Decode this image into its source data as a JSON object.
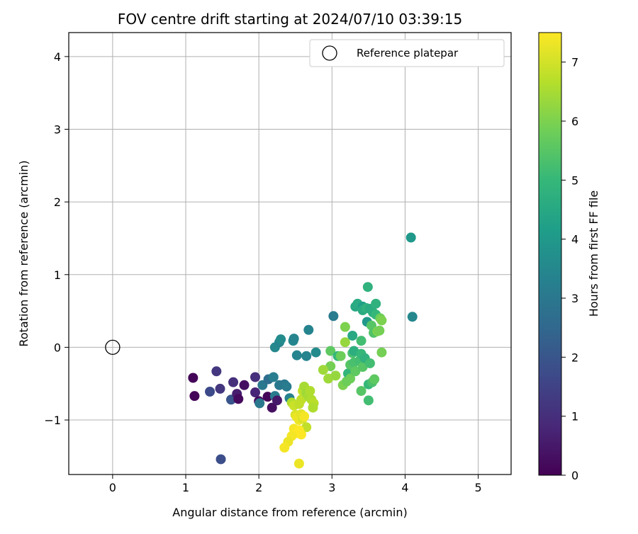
{
  "chart_data": {
    "type": "scatter",
    "title": "FOV centre drift starting at 2024/07/10 03:39:15",
    "xlabel": "Angular distance from reference (arcmin)",
    "ylabel": "Rotation from reference (arcmin)",
    "xlim": [
      -0.6,
      5.45
    ],
    "ylim": [
      -1.75,
      4.33
    ],
    "xticks": [
      0,
      1,
      2,
      3,
      4,
      5
    ],
    "xtick_labels": [
      "0",
      "1",
      "2",
      "3",
      "4",
      "5"
    ],
    "yticks": [
      -1,
      0,
      1,
      2,
      3,
      4
    ],
    "ytick_labels": [
      "−1",
      "0",
      "1",
      "2",
      "3",
      "4"
    ],
    "grid": true,
    "legend": {
      "placement": "top-right",
      "entries": [
        "Reference platepar"
      ]
    },
    "reference_point": {
      "x": 0,
      "y": 0
    },
    "colorbar": {
      "label": "Hours from first FF file",
      "colormap": "viridis",
      "range": [
        0,
        7.5
      ],
      "ticks": [
        0,
        1,
        2,
        3,
        4,
        5,
        6,
        7
      ],
      "tick_labels": [
        "0",
        "1",
        "2",
        "3",
        "4",
        "5",
        "6",
        "7"
      ]
    },
    "colors": {
      "viridis": [
        "#440154",
        "#482878",
        "#3e4989",
        "#31688e",
        "#26828e",
        "#1f9e89",
        "#35b779",
        "#6ece58",
        "#b5de2b",
        "#fde725"
      ]
    },
    "points": [
      {
        "x": 1.1,
        "y": -0.42,
        "c": 0.1
      },
      {
        "x": 1.12,
        "y": -0.67,
        "c": 0.1
      },
      {
        "x": 1.42,
        "y": -0.33,
        "c": 1.2
      },
      {
        "x": 1.33,
        "y": -0.61,
        "c": 1.7
      },
      {
        "x": 1.47,
        "y": -0.57,
        "c": 1.2
      },
      {
        "x": 1.62,
        "y": -0.72,
        "c": 2.0
      },
      {
        "x": 1.65,
        "y": -0.48,
        "c": 1.0
      },
      {
        "x": 1.7,
        "y": -0.64,
        "c": 0.6
      },
      {
        "x": 1.72,
        "y": -0.71,
        "c": 0.2
      },
      {
        "x": 1.8,
        "y": -0.52,
        "c": 0.3
      },
      {
        "x": 1.95,
        "y": -0.41,
        "c": 1.0
      },
      {
        "x": 1.95,
        "y": -0.62,
        "c": 0.8
      },
      {
        "x": 2.0,
        "y": -0.74,
        "c": 0.2
      },
      {
        "x": 2.05,
        "y": -0.52,
        "c": 3.0
      },
      {
        "x": 2.12,
        "y": -0.68,
        "c": 0.1
      },
      {
        "x": 2.13,
        "y": -0.44,
        "c": 2.7
      },
      {
        "x": 2.2,
        "y": -0.41,
        "c": 3.2
      },
      {
        "x": 2.18,
        "y": -0.83,
        "c": 0.3
      },
      {
        "x": 2.22,
        "y": -0.67,
        "c": 3.1
      },
      {
        "x": 2.25,
        "y": -0.73,
        "c": 0.5
      },
      {
        "x": 2.28,
        "y": -0.52,
        "c": 3.0
      },
      {
        "x": 2.35,
        "y": -0.51,
        "c": 3.0
      },
      {
        "x": 2.38,
        "y": -0.54,
        "c": 3.1
      },
      {
        "x": 2.01,
        "y": -0.77,
        "c": 3.0
      },
      {
        "x": 2.42,
        "y": -0.7,
        "c": 3.3
      },
      {
        "x": 1.48,
        "y": -1.54,
        "c": 1.8
      },
      {
        "x": 2.22,
        "y": 0.0,
        "c": 3.5
      },
      {
        "x": 2.28,
        "y": 0.07,
        "c": 3.4
      },
      {
        "x": 2.3,
        "y": 0.11,
        "c": 3.6
      },
      {
        "x": 2.47,
        "y": 0.09,
        "c": 3.5
      },
      {
        "x": 2.48,
        "y": 0.12,
        "c": 3.4
      },
      {
        "x": 2.52,
        "y": -0.11,
        "c": 3.4
      },
      {
        "x": 2.65,
        "y": -0.12,
        "c": 3.4
      },
      {
        "x": 2.68,
        "y": 0.24,
        "c": 3.4
      },
      {
        "x": 2.78,
        "y": -0.07,
        "c": 3.6
      },
      {
        "x": 3.02,
        "y": 0.43,
        "c": 3.1
      },
      {
        "x": 2.98,
        "y": -0.05,
        "c": 5.6
      },
      {
        "x": 2.98,
        "y": -0.26,
        "c": 5.9
      },
      {
        "x": 2.95,
        "y": -0.43,
        "c": 6.4
      },
      {
        "x": 2.88,
        "y": -0.31,
        "c": 6.4
      },
      {
        "x": 3.05,
        "y": -0.39,
        "c": 6.3
      },
      {
        "x": 3.08,
        "y": -0.12,
        "c": 5.0
      },
      {
        "x": 3.12,
        "y": -0.12,
        "c": 5.8
      },
      {
        "x": 3.15,
        "y": -0.52,
        "c": 6.0
      },
      {
        "x": 3.18,
        "y": 0.28,
        "c": 6.0
      },
      {
        "x": 3.2,
        "y": -0.47,
        "c": 5.8
      },
      {
        "x": 3.18,
        "y": 0.07,
        "c": 6.3
      },
      {
        "x": 3.22,
        "y": -0.36,
        "c": 4.9
      },
      {
        "x": 3.25,
        "y": -0.24,
        "c": 5.5
      },
      {
        "x": 3.25,
        "y": -0.43,
        "c": 5.8
      },
      {
        "x": 3.28,
        "y": 0.16,
        "c": 4.5
      },
      {
        "x": 3.28,
        "y": -0.08,
        "c": 5.3
      },
      {
        "x": 3.3,
        "y": -0.21,
        "c": 5.3
      },
      {
        "x": 3.32,
        "y": -0.33,
        "c": 5.6
      },
      {
        "x": 3.3,
        "y": -0.05,
        "c": 4.7
      },
      {
        "x": 3.32,
        "y": 0.56,
        "c": 4.5
      },
      {
        "x": 3.35,
        "y": 0.6,
        "c": 4.6
      },
      {
        "x": 3.38,
        "y": -0.18,
        "c": 5.2
      },
      {
        "x": 3.4,
        "y": 0.09,
        "c": 5.2
      },
      {
        "x": 3.4,
        "y": -0.09,
        "c": 5.0
      },
      {
        "x": 3.42,
        "y": -0.27,
        "c": 5.5
      },
      {
        "x": 3.42,
        "y": 0.56,
        "c": 4.2
      },
      {
        "x": 3.42,
        "y": 0.51,
        "c": 4.6
      },
      {
        "x": 3.4,
        "y": -0.6,
        "c": 5.5
      },
      {
        "x": 3.45,
        "y": -0.15,
        "c": 4.8
      },
      {
        "x": 3.47,
        "y": 0.54,
        "c": 4.8
      },
      {
        "x": 3.48,
        "y": 0.35,
        "c": 4.0
      },
      {
        "x": 3.49,
        "y": 0.83,
        "c": 4.8
      },
      {
        "x": 3.5,
        "y": -0.51,
        "c": 5.0
      },
      {
        "x": 3.5,
        "y": -0.73,
        "c": 5.2
      },
      {
        "x": 3.52,
        "y": -0.22,
        "c": 5.2
      },
      {
        "x": 3.52,
        "y": 0.53,
        "c": 4.6
      },
      {
        "x": 3.54,
        "y": 0.3,
        "c": 5.5
      },
      {
        "x": 3.55,
        "y": -0.48,
        "c": 5.3
      },
      {
        "x": 3.56,
        "y": 0.48,
        "c": 4.7
      },
      {
        "x": 3.57,
        "y": 0.2,
        "c": 5.4
      },
      {
        "x": 3.58,
        "y": -0.44,
        "c": 5.6
      },
      {
        "x": 3.6,
        "y": 0.6,
        "c": 4.8
      },
      {
        "x": 3.6,
        "y": 0.45,
        "c": 5.0
      },
      {
        "x": 3.62,
        "y": 0.22,
        "c": 6.0
      },
      {
        "x": 3.65,
        "y": 0.23,
        "c": 5.9
      },
      {
        "x": 3.66,
        "y": 0.4,
        "c": 5.8
      },
      {
        "x": 3.68,
        "y": 0.37,
        "c": 6.0
      },
      {
        "x": 3.68,
        "y": -0.07,
        "c": 5.9
      },
      {
        "x": 4.08,
        "y": 1.51,
        "c": 4.0
      },
      {
        "x": 4.1,
        "y": 0.42,
        "c": 3.5
      },
      {
        "x": 2.45,
        "y": -0.76,
        "c": 6.6
      },
      {
        "x": 2.48,
        "y": -0.8,
        "c": 6.9
      },
      {
        "x": 2.5,
        "y": -0.93,
        "c": 7.1
      },
      {
        "x": 2.55,
        "y": -0.78,
        "c": 6.8
      },
      {
        "x": 2.58,
        "y": -0.72,
        "c": 6.8
      },
      {
        "x": 2.6,
        "y": -0.6,
        "c": 6.8
      },
      {
        "x": 2.62,
        "y": -0.54,
        "c": 6.5
      },
      {
        "x": 2.65,
        "y": -0.63,
        "c": 6.4
      },
      {
        "x": 2.68,
        "y": -0.68,
        "c": 6.5
      },
      {
        "x": 2.7,
        "y": -0.6,
        "c": 6.6
      },
      {
        "x": 2.72,
        "y": -0.72,
        "c": 6.6
      },
      {
        "x": 2.75,
        "y": -0.77,
        "c": 6.7
      },
      {
        "x": 2.74,
        "y": -0.83,
        "c": 6.6
      },
      {
        "x": 2.52,
        "y": -0.96,
        "c": 7.3
      },
      {
        "x": 2.55,
        "y": -1.0,
        "c": 7.3
      },
      {
        "x": 2.58,
        "y": -0.92,
        "c": 7.2
      },
      {
        "x": 2.6,
        "y": -0.98,
        "c": 7.1
      },
      {
        "x": 2.62,
        "y": -0.95,
        "c": 7.4
      },
      {
        "x": 2.65,
        "y": -1.1,
        "c": 6.8
      },
      {
        "x": 2.48,
        "y": -1.12,
        "c": 7.4
      },
      {
        "x": 2.5,
        "y": -1.15,
        "c": 7.4
      },
      {
        "x": 2.52,
        "y": -1.18,
        "c": 7.5
      },
      {
        "x": 2.55,
        "y": -1.14,
        "c": 7.5
      },
      {
        "x": 2.58,
        "y": -1.2,
        "c": 7.5
      },
      {
        "x": 2.45,
        "y": -1.22,
        "c": 7.4
      },
      {
        "x": 2.4,
        "y": -1.3,
        "c": 7.3
      },
      {
        "x": 2.35,
        "y": -1.38,
        "c": 7.4
      },
      {
        "x": 2.55,
        "y": -1.6,
        "c": 7.3
      }
    ]
  }
}
